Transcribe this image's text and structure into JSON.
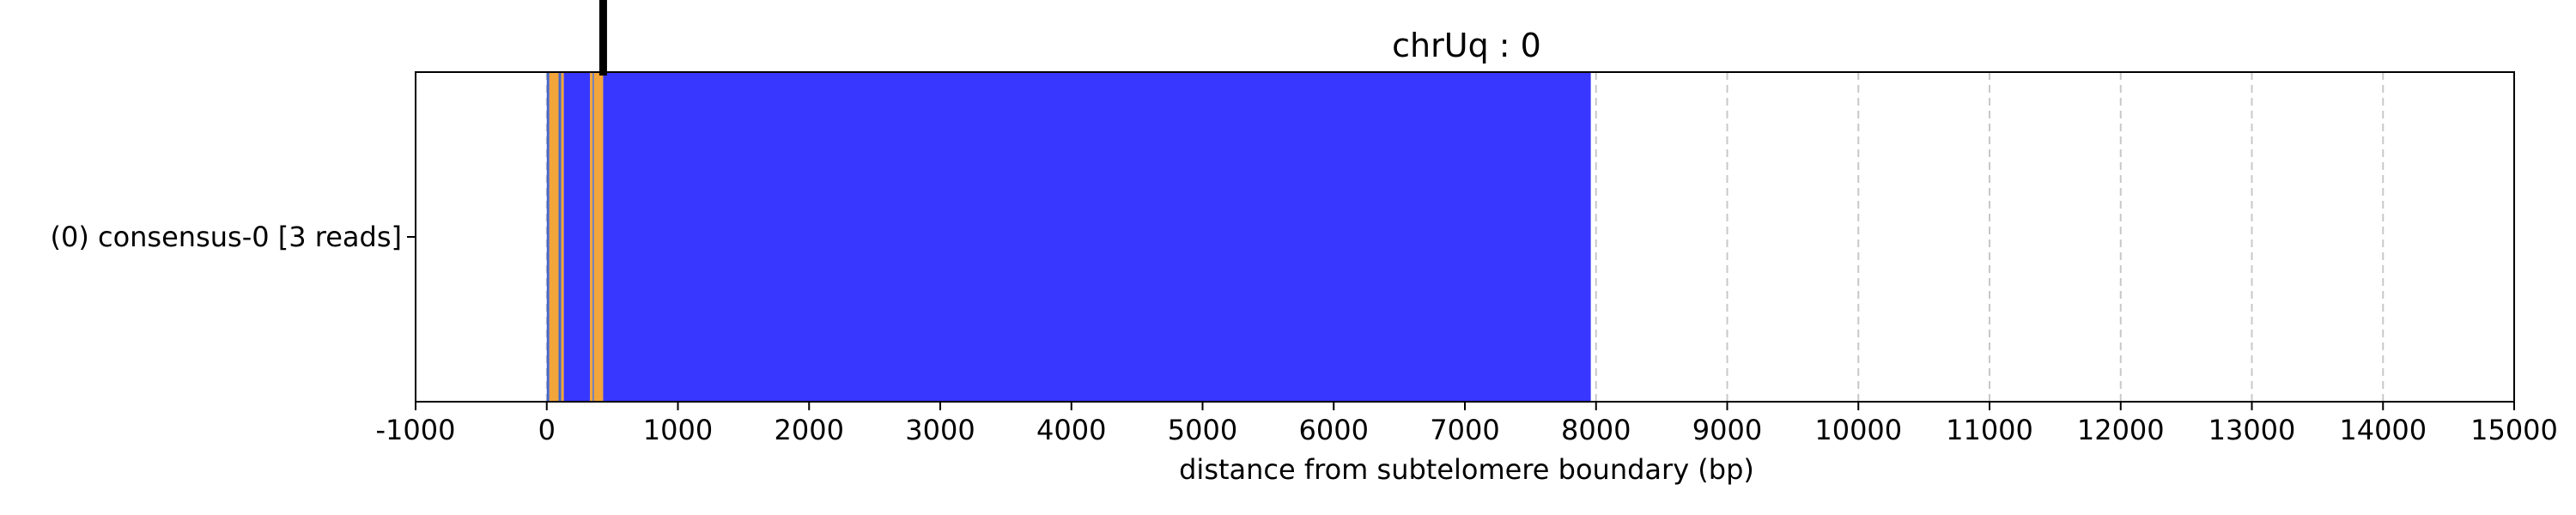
{
  "chart_data": {
    "type": "bar",
    "orientation": "horizontal",
    "title": "chrUq : 0",
    "xlabel": "distance from subtelomere boundary (bp)",
    "ylabel": "",
    "xlim": [
      -1000,
      15000
    ],
    "xticks": [
      -1000,
      0,
      1000,
      2000,
      3000,
      4000,
      5000,
      6000,
      7000,
      8000,
      9000,
      10000,
      11000,
      12000,
      13000,
      14000,
      15000
    ],
    "grid": {
      "x": true,
      "y": false,
      "style": "dashed"
    },
    "rows": [
      {
        "label": "(0) consensus-0 [3 reads]",
        "segments": [
          {
            "start": 0,
            "end": 20,
            "color": "#4466cc"
          },
          {
            "start": 20,
            "end": 90,
            "color": "#f2a53a"
          },
          {
            "start": 90,
            "end": 110,
            "color": "#4466cc"
          },
          {
            "start": 110,
            "end": 130,
            "color": "#f2a53a"
          },
          {
            "start": 130,
            "end": 330,
            "color": "#3837ff"
          },
          {
            "start": 330,
            "end": 350,
            "color": "#f2a53a"
          },
          {
            "start": 350,
            "end": 360,
            "color": "#4466cc"
          },
          {
            "start": 360,
            "end": 430,
            "color": "#f2a53a"
          },
          {
            "start": 430,
            "end": 7960,
            "color": "#3837ff"
          }
        ]
      }
    ],
    "marker_x": 430
  }
}
